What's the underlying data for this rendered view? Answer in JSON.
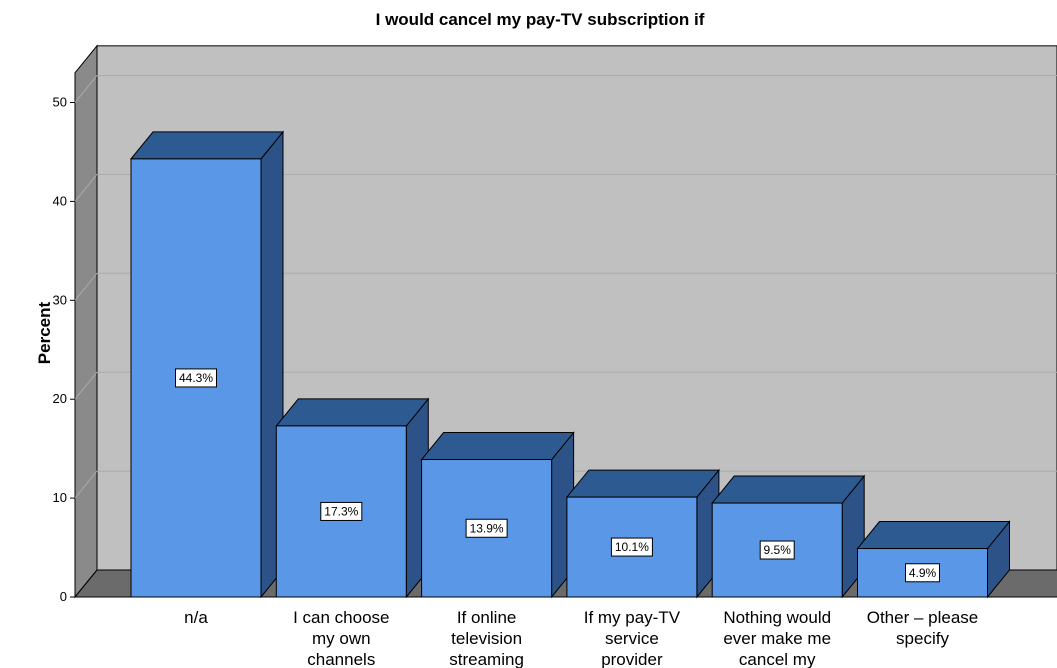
{
  "chart_data": {
    "type": "bar",
    "title": "I would cancel my pay-TV subscription if",
    "xlabel": "",
    "ylabel": "Percent",
    "ylim": [
      0,
      53
    ],
    "yticks": [
      0,
      10,
      20,
      30,
      40,
      50
    ],
    "grid": true,
    "three_d": true,
    "categories": [
      [
        "n/a"
      ],
      [
        "I can choose",
        "my own",
        "channels"
      ],
      [
        "If online",
        "television",
        "streaming"
      ],
      [
        "If my pay-TV",
        "service",
        "provider"
      ],
      [
        "Nothing would",
        "ever make me",
        "cancel my"
      ],
      [
        "Other – please",
        "specify"
      ]
    ],
    "values": [
      44.3,
      17.3,
      13.9,
      10.1,
      9.5,
      4.9
    ],
    "data_labels": [
      "44.3%",
      "17.3%",
      "13.9%",
      "10.1%",
      "9.5%",
      "4.9%"
    ],
    "colors": {
      "bar_front": "#5a97e6",
      "bar_top": "#2e5a92",
      "bar_side": "#2c5288",
      "plot_back": "#c0c0c0",
      "plot_side": "#8a8a8a",
      "floor": "#6b6b6b",
      "grid": "#aaaaaa"
    }
  }
}
